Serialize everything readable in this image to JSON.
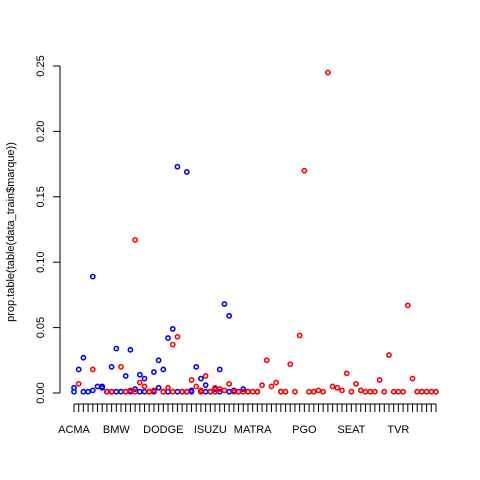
{
  "chart_data": {
    "type": "scatter",
    "title": "",
    "xlabel": "",
    "ylabel": "prop.table(table(data_train$marque))",
    "ylim": [
      0,
      0.25
    ],
    "yticks": [
      0.0,
      0.05,
      0.1,
      0.15,
      0.2,
      0.25
    ],
    "ytick_labels": [
      "0.00",
      "0.05",
      "0.10",
      "0.15",
      "0.20",
      "0.25"
    ],
    "x_tick_labels": [
      "ACMA",
      "BMW",
      "DODGE",
      "ISUZU",
      "MATRA",
      "PGO",
      "SEAT",
      "TVR"
    ],
    "x_tick_label_index": [
      1,
      10,
      20,
      30,
      39,
      50,
      60,
      70
    ],
    "n_categories": 78,
    "grid": false,
    "colors": {
      "blue": "#0000ff",
      "red": "#ff0000",
      "axis": "#000000"
    },
    "series": [
      {
        "color": "blue",
        "x": [
          1,
          2,
          3,
          4,
          5,
          6,
          7,
          8,
          9,
          10,
          11,
          12,
          13,
          14,
          15,
          16,
          17,
          18,
          19,
          20,
          21,
          22,
          23,
          24,
          25,
          26,
          27,
          28,
          29,
          30,
          31,
          32,
          33,
          34,
          35,
          36,
          37,
          38,
          1,
          3,
          5,
          7,
          8,
          9,
          10,
          12,
          13,
          15,
          16,
          18,
          19,
          20,
          21,
          23,
          24,
          25,
          26,
          28,
          29,
          30,
          31,
          32,
          34,
          35,
          36
        ],
        "y": [
          0.004,
          0.018,
          0.027,
          0.001,
          0.089,
          0.005,
          0.004,
          0.001,
          0.02,
          0.034,
          0.001,
          0.013,
          0.033,
          0.003,
          0.014,
          0.011,
          0.001,
          0.016,
          0.025,
          0.018,
          0.042,
          0.049,
          0.173,
          0.001,
          0.169,
          0.002,
          0.02,
          0.011,
          0.006,
          0.001,
          0.003,
          0.018,
          0.068,
          0.059,
          0.002,
          0.001,
          0.003,
          0.001,
          0.001,
          0.001,
          0.002,
          0.005,
          0.001,
          0.001,
          0.001,
          0.001,
          0.001,
          0.001,
          0.001,
          0.001,
          0.004,
          0.001,
          0.001,
          0.001,
          0.001,
          0.001,
          0.001,
          0.001,
          0.001,
          0.001,
          0.001,
          0.001,
          0.001,
          0.001,
          0.001
        ]
      },
      {
        "color": "red",
        "x": [
          2,
          5,
          8,
          11,
          12,
          13,
          14,
          15,
          16,
          17,
          18,
          20,
          21,
          22,
          23,
          24,
          25,
          26,
          27,
          28,
          29,
          30,
          31,
          32,
          33,
          34,
          35,
          36,
          37,
          38,
          39,
          40,
          41,
          42,
          43,
          44,
          45,
          46,
          47,
          48,
          49,
          50,
          51,
          52,
          53,
          54,
          55,
          56,
          57,
          58,
          59,
          60,
          61,
          62,
          63,
          64,
          65,
          66,
          67,
          68,
          69,
          70,
          71,
          72,
          73,
          74,
          75,
          76,
          77,
          78,
          9,
          14,
          17,
          22,
          28,
          31,
          40,
          45
        ],
        "y": [
          0.007,
          0.018,
          0.001,
          0.02,
          0.001,
          0.002,
          0.117,
          0.008,
          0.005,
          0.001,
          0.002,
          0.001,
          0.004,
          0.037,
          0.043,
          0.001,
          0.001,
          0.01,
          0.005,
          0.002,
          0.013,
          0.001,
          0.004,
          0.003,
          0.002,
          0.007,
          0.001,
          0.001,
          0.001,
          0.001,
          0.001,
          0.001,
          0.006,
          0.025,
          0.005,
          0.008,
          0.001,
          0.001,
          0.022,
          0.001,
          0.044,
          0.17,
          0.001,
          0.001,
          0.002,
          0.001,
          0.245,
          0.005,
          0.004,
          0.002,
          0.015,
          0.001,
          0.007,
          0.002,
          0.001,
          0.001,
          0.001,
          0.01,
          0.001,
          0.029,
          0.001,
          0.001,
          0.001,
          0.067,
          0.011,
          0.001,
          0.001,
          0.001,
          0.001,
          0.001,
          0.001,
          0.001,
          0.001,
          0.001,
          0.001,
          0.001,
          0.001,
          0.001
        ]
      }
    ]
  }
}
